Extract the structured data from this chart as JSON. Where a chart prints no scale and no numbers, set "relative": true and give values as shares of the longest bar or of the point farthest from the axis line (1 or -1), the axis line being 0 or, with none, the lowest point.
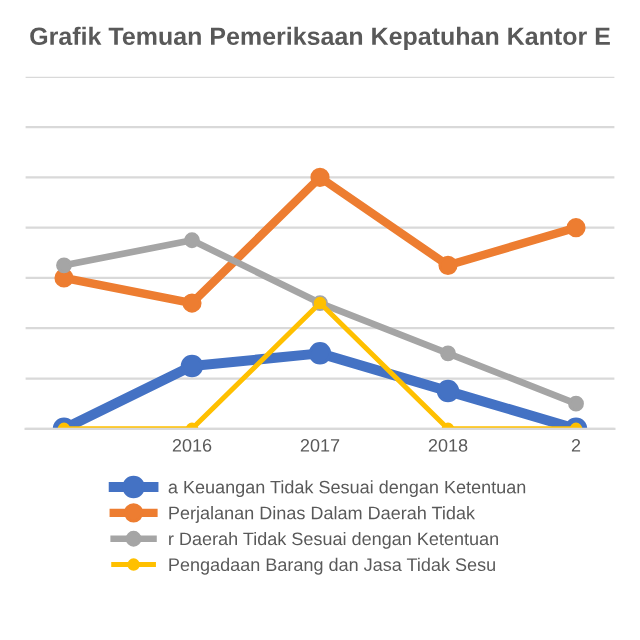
{
  "chart_data": {
    "type": "line",
    "title": "Grafik Temuan Pemeriksaan Kepatuhan Kantor E",
    "relative": true,
    "categories": [
      null,
      "2016",
      "2017",
      "2018",
      "2"
    ],
    "series": [
      {
        "name": "a Keuangan Tidak Sesuai dengan Ketentuan",
        "color": "#4472c4",
        "values": [
          0,
          0.25,
          0.3,
          0.15,
          0
        ]
      },
      {
        "name": "Perjalanan Dinas Dalam Daerah Tidak",
        "color": "#ed7d31",
        "values": [
          0.6,
          0.5,
          1,
          0.65,
          0.8
        ]
      },
      {
        "name": "r Daerah Tidak Sesuai dengan Ketentuan",
        "color": "#a5a5a5",
        "values": [
          0.65,
          0.75,
          0.5,
          0.3,
          0.1
        ]
      },
      {
        "name": "Pengadaan Barang dan Jasa Tidak Sesu",
        "color": "#ffc000",
        "values": [
          0,
          0,
          0.5,
          0,
          0
        ]
      }
    ],
    "marker": "circle",
    "grid": "y",
    "legend": "bottom"
  }
}
